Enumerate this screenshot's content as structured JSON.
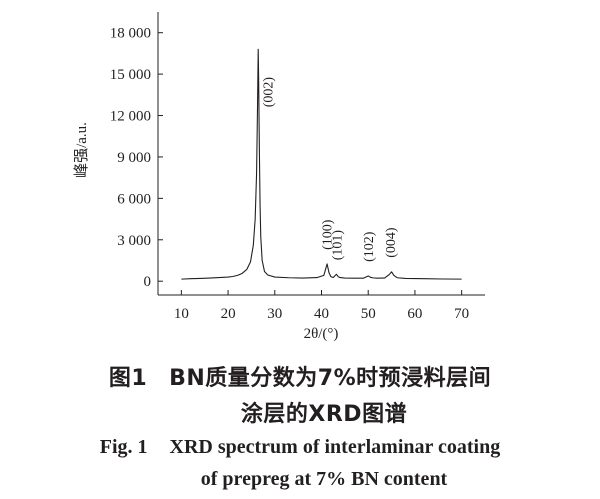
{
  "caption": {
    "cn_label": "图1",
    "cn_line1": "BN质量分数为7%时预浸料层间",
    "cn_line2": "涂层的XRD图谱",
    "en_label": "Fig. 1",
    "en_line1": "XRD spectrum of interlaminar coating",
    "en_line2": "of prepreg at 7% BN content"
  },
  "chart_data": {
    "type": "line",
    "title": "",
    "xlabel": "2θ/(°)",
    "ylabel": "峰强/a.u.",
    "xlim": [
      5,
      75
    ],
    "ylim": [
      -1000,
      19500
    ],
    "xticks": [
      10,
      20,
      30,
      40,
      50,
      60,
      70
    ],
    "yticks": [
      0,
      3000,
      6000,
      9000,
      12000,
      15000,
      18000
    ],
    "ytick_labels": [
      "0",
      "3 000",
      "6 000",
      "9 000",
      "12 000",
      "15 000",
      "18 000"
    ],
    "grid": false,
    "line_color": "#231f20",
    "series": [
      {
        "x": [
          10,
          12,
          14,
          16,
          18,
          20,
          21,
          22,
          23,
          24,
          24.8,
          25.4,
          25.8,
          26.1,
          26.3,
          26.45,
          26.55,
          26.7,
          26.85,
          27.0,
          27.3,
          27.8,
          28.5,
          30,
          33,
          36,
          39,
          40.5,
          41.2,
          41.6,
          42.0,
          42.5,
          43.2,
          43.6,
          44.0,
          45,
          47,
          49,
          50.0,
          50.5,
          51.0,
          52,
          53.5,
          54.5,
          55.0,
          55.5,
          56.2,
          58,
          62,
          66,
          70
        ],
        "y": [
          150,
          180,
          200,
          230,
          260,
          300,
          340,
          420,
          560,
          850,
          1400,
          2600,
          4500,
          7800,
          12500,
          16800,
          14500,
          9500,
          5500,
          3200,
          1500,
          700,
          450,
          300,
          250,
          230,
          260,
          420,
          1250,
          620,
          330,
          270,
          500,
          320,
          260,
          230,
          220,
          220,
          380,
          280,
          240,
          220,
          230,
          480,
          680,
          420,
          250,
          200,
          180,
          160,
          150
        ]
      }
    ],
    "annotations": [
      {
        "text": "(002)",
        "x": 27.5,
        "y": 16800
      },
      {
        "text": "(100)",
        "x": 41.5,
        "y": 1250
      },
      {
        "text": "(101)",
        "x": 43.6,
        "y": 500
      },
      {
        "text": "(102)",
        "x": 50.3,
        "y": 380
      },
      {
        "text": "(004)",
        "x": 55.0,
        "y": 680
      }
    ]
  }
}
